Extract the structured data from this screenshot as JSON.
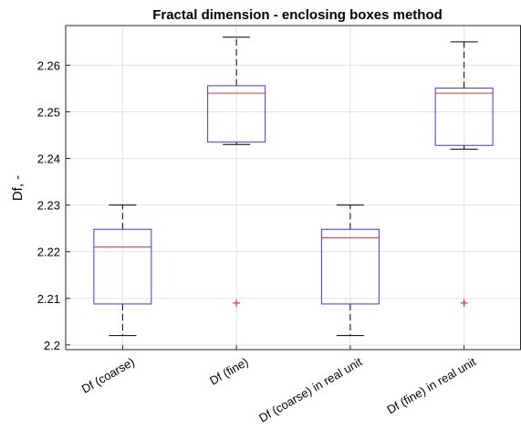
{
  "chart_data": {
    "type": "box",
    "title": "Fractal dimension - enclosing boxes method",
    "xlabel": "",
    "ylabel": "Df, -",
    "ylim": [
      2.199,
      2.2685
    ],
    "yticks": [
      "2.2",
      "2.21",
      "2.22",
      "2.23",
      "2.24",
      "2.25",
      "2.26"
    ],
    "ytick_values": [
      2.2,
      2.21,
      2.22,
      2.23,
      2.24,
      2.25,
      2.26
    ],
    "grid": true,
    "categories": [
      "Df (coarse)",
      "Df (fine)",
      "Df (coarse) in real unit",
      "Df (fine) in real unit"
    ],
    "boxes": [
      {
        "whisker_low": 2.202,
        "q1": 2.2088,
        "median": 2.221,
        "q3": 2.2248,
        "whisker_high": 2.23,
        "outliers": []
      },
      {
        "whisker_low": 2.243,
        "q1": 2.2435,
        "median": 2.254,
        "q3": 2.2556,
        "whisker_high": 2.266,
        "outliers": [
          2.209
        ]
      },
      {
        "whisker_low": 2.202,
        "q1": 2.2088,
        "median": 2.223,
        "q3": 2.2248,
        "whisker_high": 2.23,
        "outliers": []
      },
      {
        "whisker_low": 2.242,
        "q1": 2.2428,
        "median": 2.254,
        "q3": 2.2551,
        "whisker_high": 2.265,
        "outliers": [
          2.209
        ]
      }
    ],
    "colors": {
      "box": "#3a3adf",
      "median": "#e03030",
      "whisker": "#000000",
      "outlier": "#ff0000",
      "grid": "#e3e3e3",
      "axis": "#262626"
    }
  }
}
